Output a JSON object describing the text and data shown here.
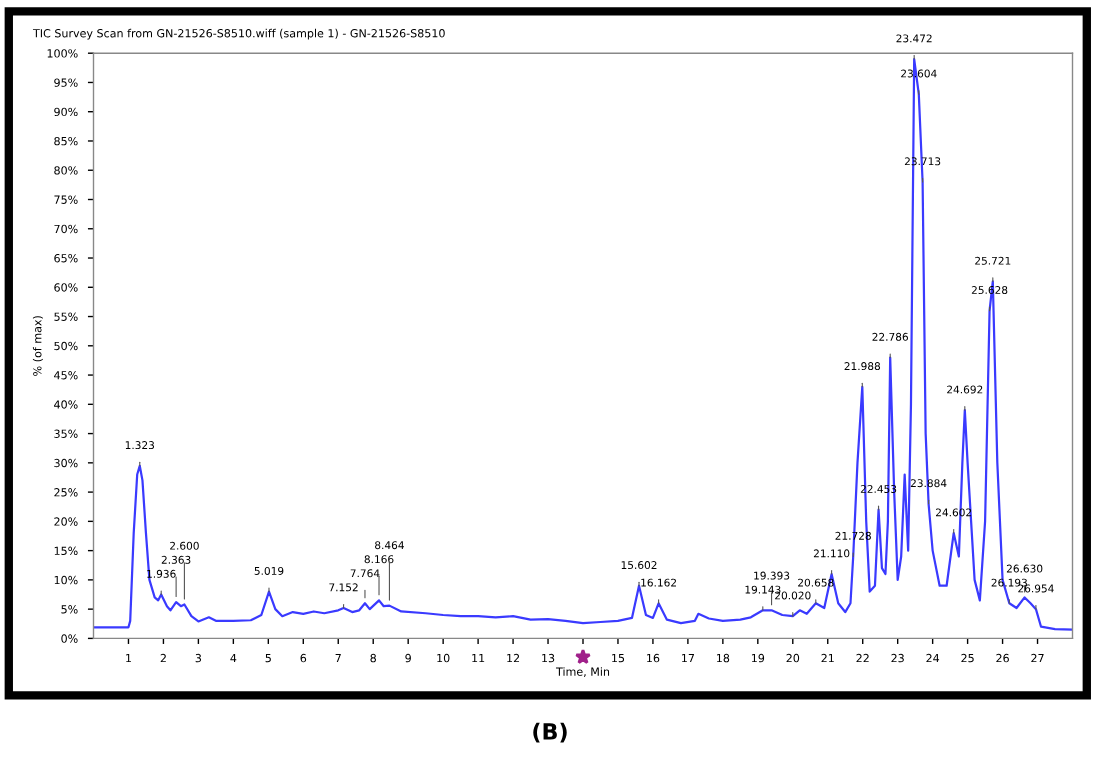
{
  "chart_data": {
    "type": "line",
    "title": "TIC Survey Scan from GN-21526-S8510.wiff (sample 1) - GN-21526-S8510",
    "xlabel": "Time, Min",
    "ylabel": "% (of max)",
    "xlim": [
      0,
      28
    ],
    "xticks": [
      1,
      2,
      3,
      4,
      5,
      6,
      7,
      8,
      9,
      10,
      11,
      12,
      13,
      {
        "value": 14,
        "label": null
      },
      15,
      16,
      17,
      18,
      19,
      20,
      21,
      22,
      23,
      24,
      25,
      26,
      27
    ],
    "ylim": [
      0,
      100
    ],
    "yticks": [
      {
        "value": 0,
        "label": "0%"
      },
      {
        "value": 5,
        "label": "5%"
      },
      {
        "value": 10,
        "label": "10%"
      },
      {
        "value": 15,
        "label": "15%"
      },
      {
        "value": 20,
        "label": "20%"
      },
      {
        "value": 25,
        "label": "25%"
      },
      {
        "value": 30,
        "label": "30%"
      },
      {
        "value": 35,
        "label": "35%"
      },
      {
        "value": 40,
        "label": "40%"
      },
      {
        "value": 45,
        "label": "45%"
      },
      {
        "value": 50,
        "label": "50%"
      },
      {
        "value": 55,
        "label": "55%"
      },
      {
        "value": 60,
        "label": "60%"
      },
      {
        "value": 65,
        "label": "65%"
      },
      {
        "value": 70,
        "label": "70%"
      },
      {
        "value": 75,
        "label": "75%"
      },
      {
        "value": 80,
        "label": "80%"
      },
      {
        "value": 85,
        "label": "85%"
      },
      {
        "value": 90,
        "label": "90%"
      },
      {
        "value": 95,
        "label": "95%"
      },
      {
        "value": 100,
        "label": "100%"
      }
    ],
    "grid": false,
    "legend": false,
    "marker": "none",
    "line_style": "solid",
    "series": [
      {
        "color": "#3a3aff",
        "x": [
          0,
          1.0,
          1.05,
          1.15,
          1.25,
          1.323,
          1.4,
          1.5,
          1.6,
          1.75,
          1.85,
          1.936,
          2.1,
          2.2,
          2.363,
          2.5,
          2.6,
          2.8,
          3.0,
          3.3,
          3.5,
          4.0,
          4.5,
          4.8,
          5.019,
          5.2,
          5.4,
          5.7,
          6.0,
          6.3,
          6.6,
          7.0,
          7.152,
          7.4,
          7.6,
          7.764,
          7.9,
          8.166,
          8.3,
          8.464,
          8.8,
          9.5,
          10.0,
          10.5,
          11.0,
          11.5,
          12.0,
          12.5,
          13.0,
          13.5,
          14.0,
          14.5,
          15.0,
          15.4,
          15.602,
          15.8,
          16.0,
          16.162,
          16.4,
          16.8,
          17.2,
          17.3,
          17.6,
          18.0,
          18.5,
          18.8,
          19.143,
          19.393,
          19.7,
          20.0,
          20.2,
          20.4,
          20.658,
          20.9,
          21.11,
          21.3,
          21.5,
          21.65,
          21.728,
          21.85,
          21.988,
          22.1,
          22.2,
          22.35,
          22.453,
          22.55,
          22.65,
          22.72,
          22.786,
          22.9,
          23.0,
          23.1,
          23.2,
          23.3,
          23.38,
          23.472,
          23.604,
          23.713,
          23.8,
          23.884,
          24.0,
          24.2,
          24.4,
          24.602,
          24.75,
          24.85,
          24.92,
          25.0,
          25.2,
          25.35,
          25.5,
          25.628,
          25.721,
          25.85,
          26.0,
          26.193,
          26.4,
          26.63,
          26.8,
          26.954,
          27.1,
          27.5,
          28
        ],
        "values": [
          1.9,
          1.9,
          3,
          18,
          28,
          29.5,
          27,
          18,
          10,
          7,
          6.5,
          7.5,
          5.5,
          4.8,
          6.2,
          5.5,
          5.8,
          3.8,
          2.9,
          3.6,
          3.0,
          3.0,
          3.1,
          4,
          8,
          5,
          3.8,
          4.5,
          4.2,
          4.6,
          4.3,
          4.8,
          5.2,
          4.5,
          4.8,
          6.0,
          5.0,
          6.5,
          5.5,
          5.6,
          4.6,
          4.3,
          4.0,
          3.8,
          3.8,
          3.6,
          3.8,
          3.2,
          3.3,
          3.0,
          2.6,
          2.8,
          3.0,
          3.5,
          9.0,
          4.0,
          3.5,
          6.0,
          3.2,
          2.6,
          3.0,
          4.2,
          3.4,
          3.0,
          3.2,
          3.6,
          4.8,
          4.8,
          4.0,
          3.8,
          4.8,
          4.2,
          6.0,
          5.2,
          11,
          6,
          4.5,
          6,
          14,
          30,
          43,
          20,
          8,
          9,
          22,
          12,
          11,
          20,
          48,
          25,
          10,
          14,
          28,
          15,
          40,
          99,
          93,
          78,
          35,
          23,
          15,
          9,
          9,
          18,
          14,
          30,
          39,
          30,
          10,
          6.5,
          20,
          56,
          61,
          30,
          10,
          6,
          5.2,
          7,
          6,
          5,
          2.0,
          1.6,
          1.5
        ]
      }
    ],
    "annotations": [
      {
        "text": "1.323",
        "x": 1.323,
        "y": 29.5
      },
      {
        "text": "1.936",
        "x": 1.936,
        "y": 7.5
      },
      {
        "text": "2.363",
        "x": 2.363,
        "y": 6.2
      },
      {
        "text": "2.600",
        "x": 2.6,
        "y": 5.8
      },
      {
        "text": "5.019",
        "x": 5.019,
        "y": 8
      },
      {
        "text": "7.152",
        "x": 7.152,
        "y": 5.2
      },
      {
        "text": "7.764",
        "x": 7.764,
        "y": 6.0
      },
      {
        "text": "8.166",
        "x": 8.166,
        "y": 6.5
      },
      {
        "text": "8.464",
        "x": 8.464,
        "y": 5.6
      },
      {
        "text": "15.602",
        "x": 15.602,
        "y": 9.0
      },
      {
        "text": "16.162",
        "x": 16.162,
        "y": 6.0
      },
      {
        "text": "19.143",
        "x": 19.143,
        "y": 4.8
      },
      {
        "text": "19.393",
        "x": 19.393,
        "y": 4.8
      },
      {
        "text": "20.020",
        "x": 20.0,
        "y": 3.8
      },
      {
        "text": "20.658",
        "x": 20.658,
        "y": 6.0
      },
      {
        "text": "21.110",
        "x": 21.11,
        "y": 11
      },
      {
        "text": "21.728",
        "x": 21.728,
        "y": 14
      },
      {
        "text": "21.988",
        "x": 21.988,
        "y": 43
      },
      {
        "text": "22.453",
        "x": 22.453,
        "y": 22
      },
      {
        "text": "22.786",
        "x": 22.786,
        "y": 48
      },
      {
        "text": "23.472",
        "x": 23.472,
        "y": 99
      },
      {
        "text": "23.604",
        "x": 23.604,
        "y": 93
      },
      {
        "text": "23.713",
        "x": 23.713,
        "y": 78
      },
      {
        "text": "23.884",
        "x": 23.884,
        "y": 23
      },
      {
        "text": "24.602",
        "x": 24.602,
        "y": 18
      },
      {
        "text": "24.692",
        "x": 24.92,
        "y": 39
      },
      {
        "text": "25.628",
        "x": 25.628,
        "y": 56
      },
      {
        "text": "25.721",
        "x": 25.721,
        "y": 61
      },
      {
        "text": "26.193",
        "x": 26.193,
        "y": 6
      },
      {
        "text": "26.630",
        "x": 26.63,
        "y": 7
      },
      {
        "text": "26.954",
        "x": 26.954,
        "y": 5
      },
      "(B)"
    ]
  }
}
